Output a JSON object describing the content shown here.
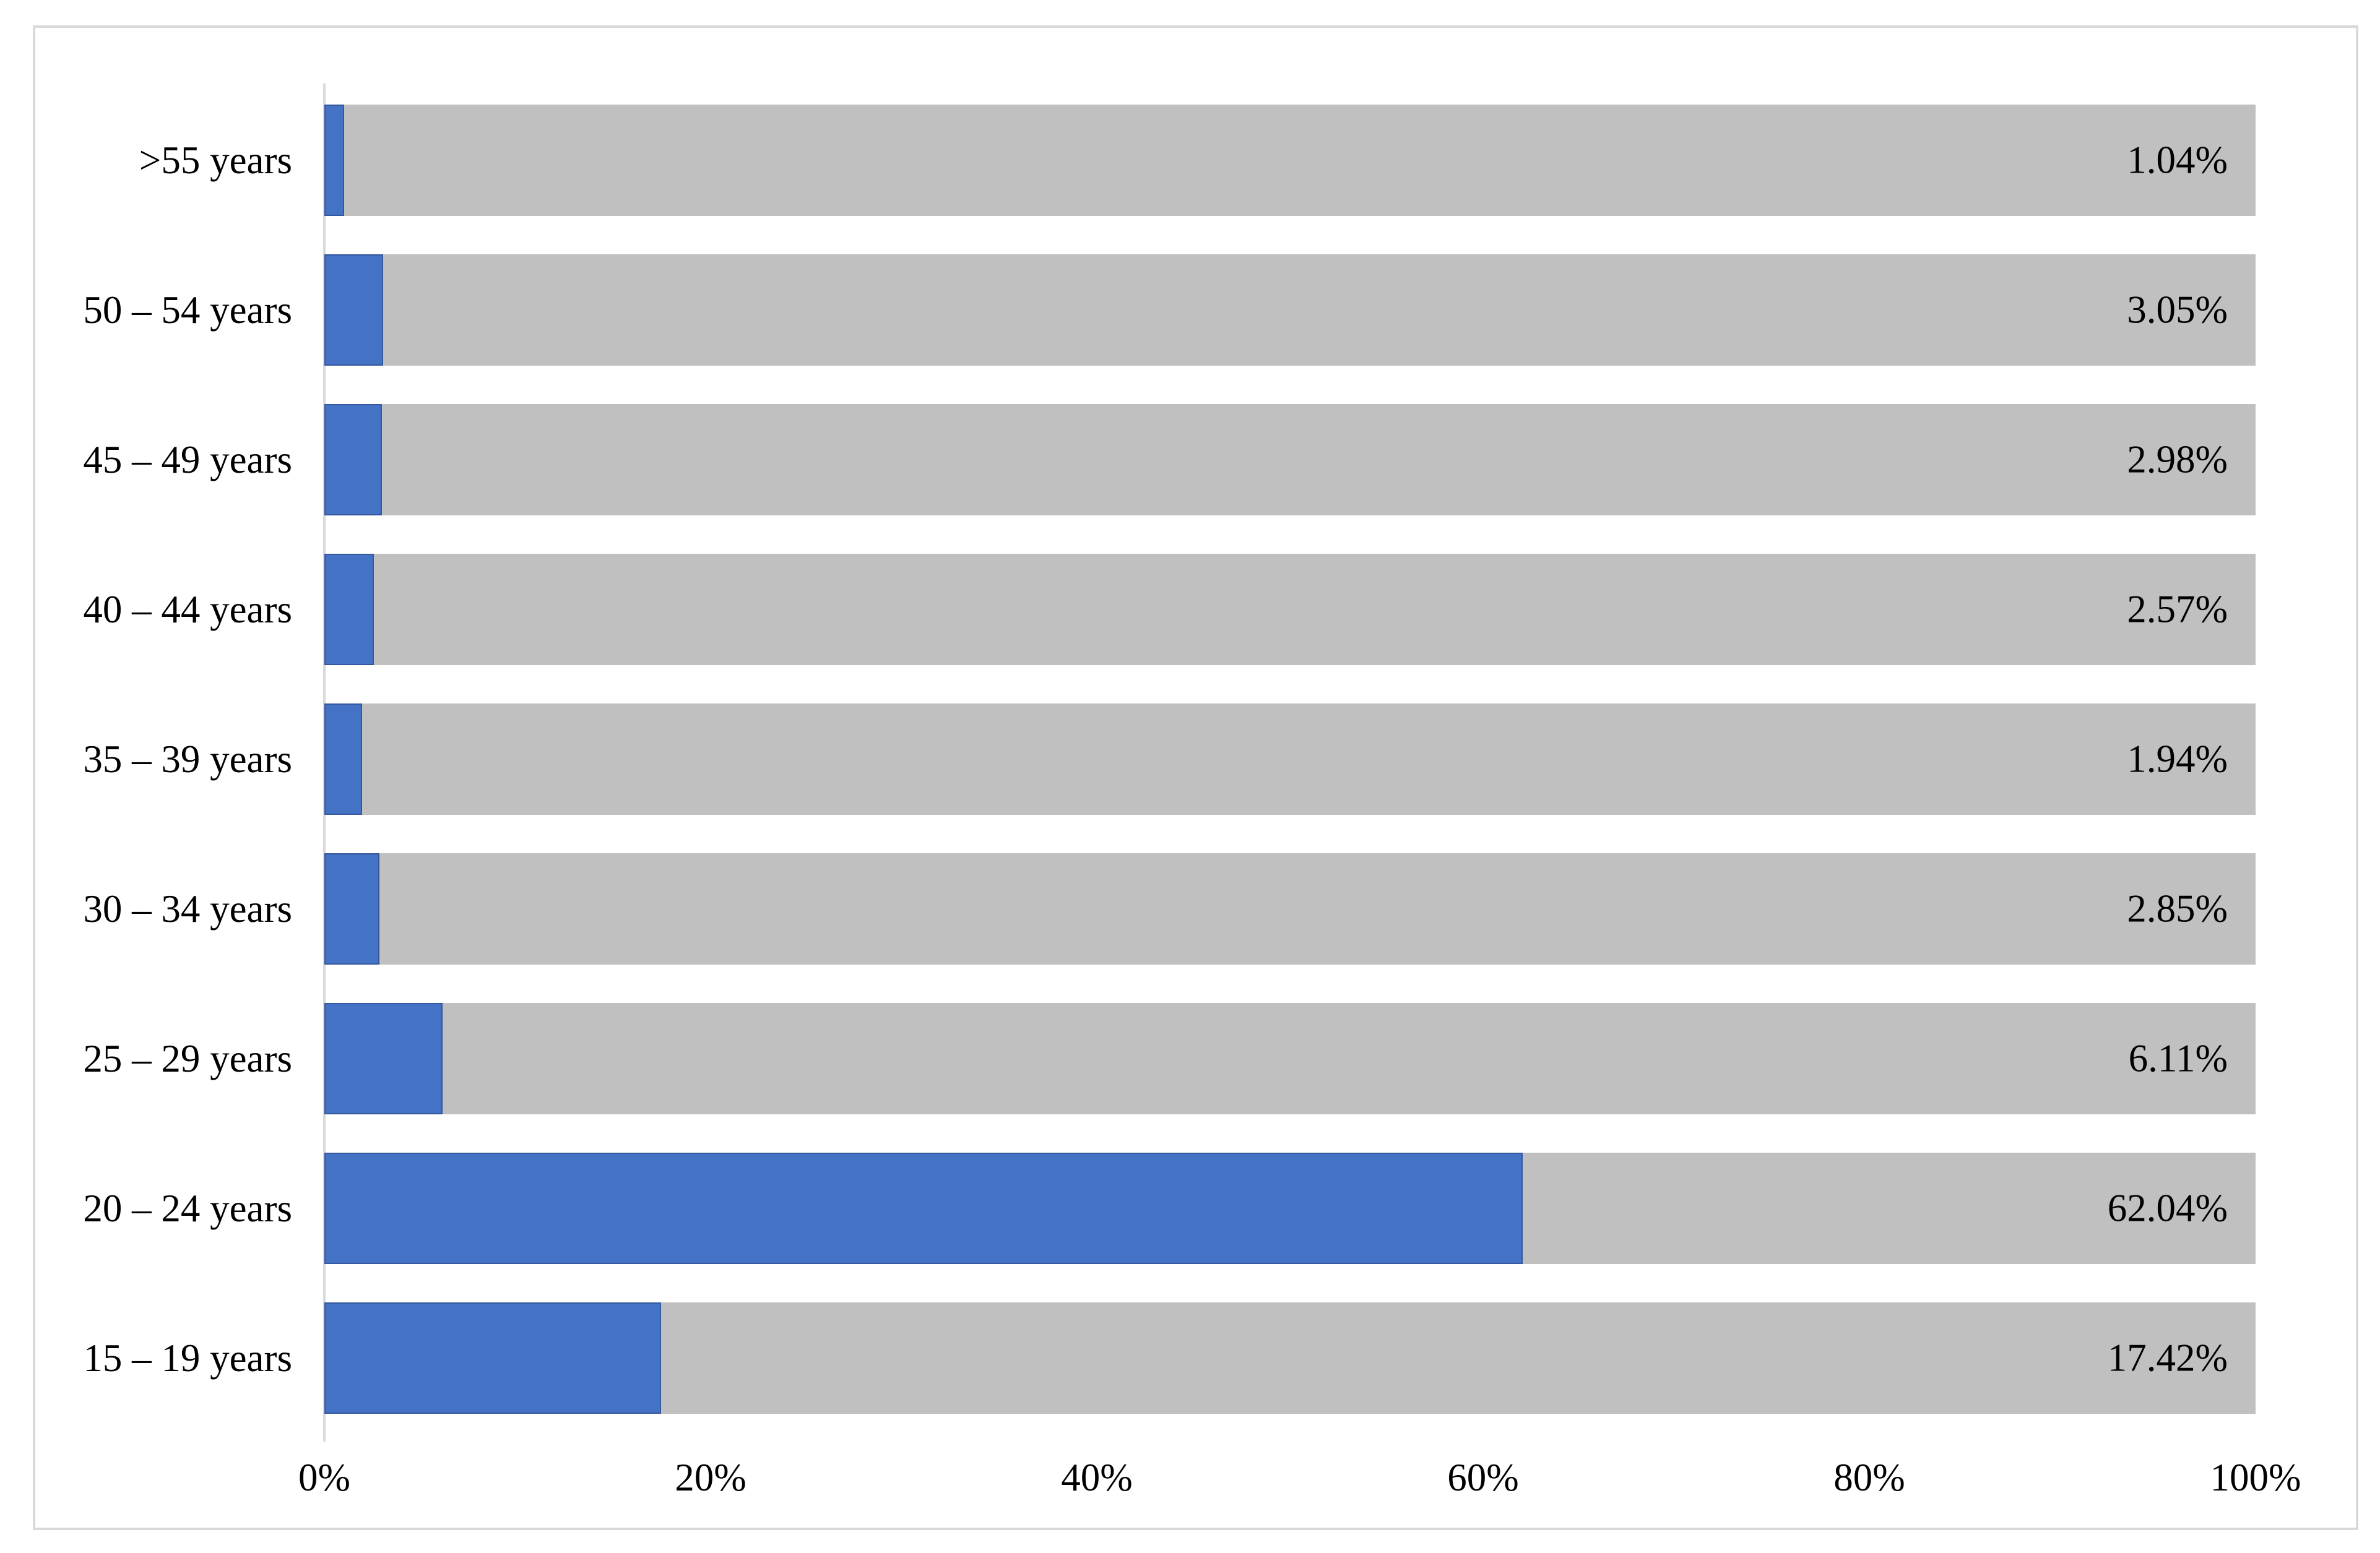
{
  "figure": {
    "background": "#ffffff",
    "border_color": "#d9d9d9"
  },
  "chart_data": {
    "type": "bar",
    "orientation": "horizontal",
    "title": "",
    "xlabel": "",
    "ylabel": "",
    "xlim": [
      0,
      100
    ],
    "grid": false,
    "legend": "none",
    "categories": [
      ">55 years",
      "50 – 54 years",
      "45 – 49 years",
      "40 – 44 years",
      "35 – 39 years",
      "30 – 34 years",
      "25 – 29 years",
      "20 – 24 years",
      "15 – 19 years"
    ],
    "values": [
      1.04,
      3.05,
      2.98,
      2.57,
      1.94,
      2.85,
      6.11,
      62.04,
      17.42
    ],
    "value_labels": [
      "1.04%",
      "3.05%",
      "2.98%",
      "2.57%",
      "1.94%",
      "2.85%",
      "6.11%",
      "62.04%",
      "17.42%"
    ],
    "x_ticks": [
      "0%",
      "20%",
      "40%",
      "60%",
      "80%",
      "100%"
    ],
    "x_tick_positions": [
      0,
      20,
      40,
      60,
      80,
      100
    ],
    "colors": {
      "bar_fill": "#4472c4",
      "bar_fill_edge": "#34579e",
      "bar_remainder": "#c0c0c0",
      "axis_line": "#d9d9d9",
      "text": "#000000"
    }
  }
}
